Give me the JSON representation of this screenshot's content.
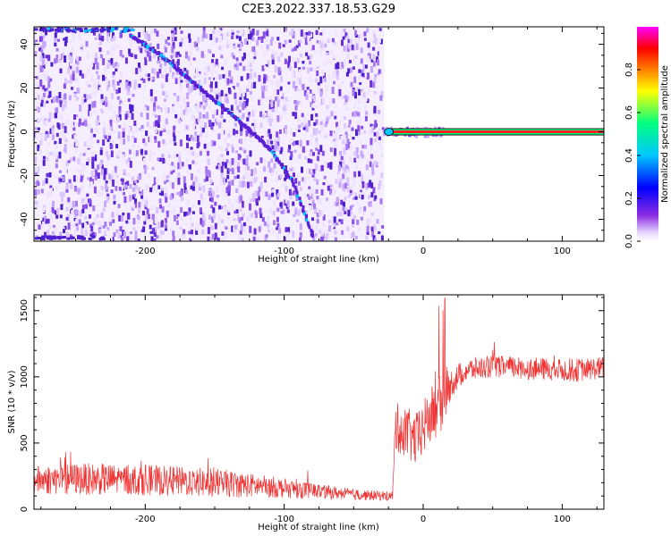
{
  "title": "C2E3.2022.337.18.53.G29",
  "colors": {
    "snr_line": "#f03232",
    "track_dot": "#5a1fd6",
    "colorbar_stops": [
      "#ffffff",
      "#e8d8ff",
      "#8a2be2",
      "#0000ff",
      "#00c8ff",
      "#00ff80",
      "#ffff00",
      "#ff8000",
      "#ff0000",
      "#ff00ff"
    ]
  },
  "chart_data": [
    {
      "type": "heatmap",
      "xlabel": "Height of straight line (km)",
      "ylabel": "Frequency (Hz)",
      "xlim": [
        -280,
        130
      ],
      "ylim": [
        -50,
        48
      ],
      "x_ticks": [
        -200,
        -100,
        0,
        100
      ],
      "x_tick_labels": [
        "-200",
        "-100",
        "0",
        "100"
      ],
      "y_ticks": [
        -40,
        -20,
        0,
        20,
        40
      ],
      "y_tick_labels": [
        "-40",
        "-20",
        "0",
        "20",
        "40"
      ],
      "noise_region_x": [
        -280,
        -28
      ],
      "diagonal_track": {
        "x": [
          -212,
          -190,
          -160,
          -130,
          -110,
          -95,
          -80
        ],
        "y": [
          45,
          36,
          20,
          4,
          -8,
          -22,
          -47
        ]
      },
      "carrier_line": {
        "x_start": -26,
        "x_end": 130,
        "y": 0,
        "amplitude": 1.0
      },
      "colorbar": {
        "label": "Normalized spectral amplitude",
        "ticks": [
          0.0,
          0.2,
          0.4,
          0.6,
          0.8
        ],
        "tick_labels": [
          "0.0",
          "0.2",
          "0.4",
          "0.6",
          "0.8"
        ],
        "range": [
          0,
          1
        ]
      }
    },
    {
      "type": "line",
      "xlabel": "Height of straight line (km)",
      "ylabel": "SNR (10 * v/v)",
      "xlim": [
        -280,
        130
      ],
      "ylim": [
        0,
        1620
      ],
      "x_ticks": [
        -200,
        -100,
        0,
        100
      ],
      "x_tick_labels": [
        "-200",
        "-100",
        "0",
        "100"
      ],
      "y_ticks": [
        0,
        500,
        1000,
        1500
      ],
      "y_tick_labels": [
        "0",
        "500",
        "1000",
        "1500"
      ],
      "series": [
        {
          "x": [
            -280,
            -250,
            -200,
            -150,
            -100,
            -60,
            -40,
            -22,
            -20,
            -15,
            -5,
            5,
            13,
            20,
            30,
            50,
            80,
            110,
            130
          ],
          "y_center": [
            220,
            230,
            220,
            200,
            160,
            120,
            105,
            100,
            620,
            600,
            520,
            700,
            800,
            950,
            1050,
            1080,
            1060,
            1050,
            1070
          ],
          "y_noise": [
            220,
            240,
            230,
            220,
            150,
            90,
            80,
            70,
            380,
            380,
            420,
            430,
            450,
            220,
            180,
            170,
            170,
            180,
            170
          ]
        }
      ]
    }
  ]
}
